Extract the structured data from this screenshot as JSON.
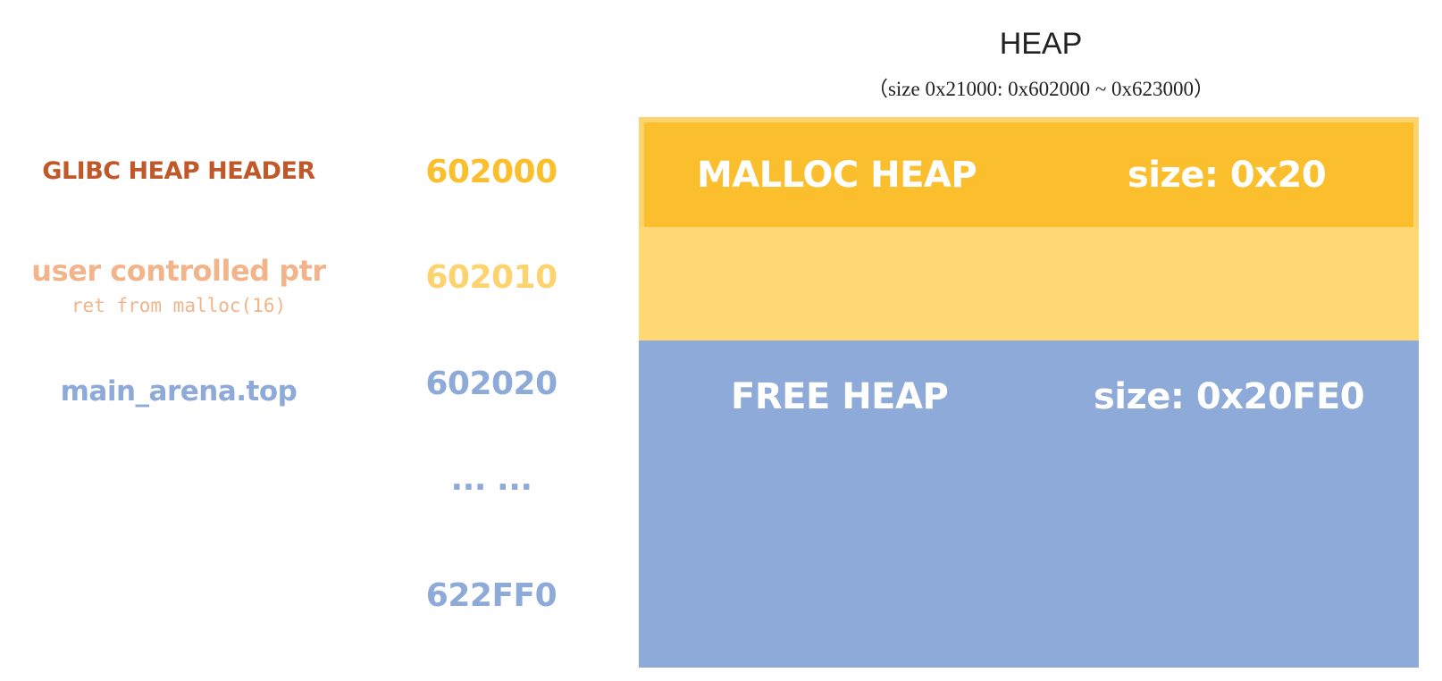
{
  "heap": {
    "title": "HEAP",
    "subtitle": "（size 0x21000: 0x602000 ~ 0x623000）"
  },
  "labels": {
    "glibc_header": "GLIBC HEAP HEADER",
    "user_ptr": "user controlled ptr",
    "user_ptr_note": "ret from malloc(16)",
    "arena_top": "main_arena.top"
  },
  "addresses": {
    "a0": "602000",
    "a1": "602010",
    "a2": "602020",
    "ellipsis": "... ...",
    "a3": "622FF0"
  },
  "blocks": {
    "malloc": {
      "name": "MALLOC HEAP",
      "size": "size: 0x20"
    },
    "free": {
      "name": "FREE HEAP",
      "size": "size: 0x20FE0"
    }
  },
  "colors": {
    "malloc_block": "#fbbf2e",
    "user_block": "#fdd873",
    "free_block": "#8eaad8",
    "glibc_label": "#c0582a",
    "user_label": "#f2b48b"
  }
}
